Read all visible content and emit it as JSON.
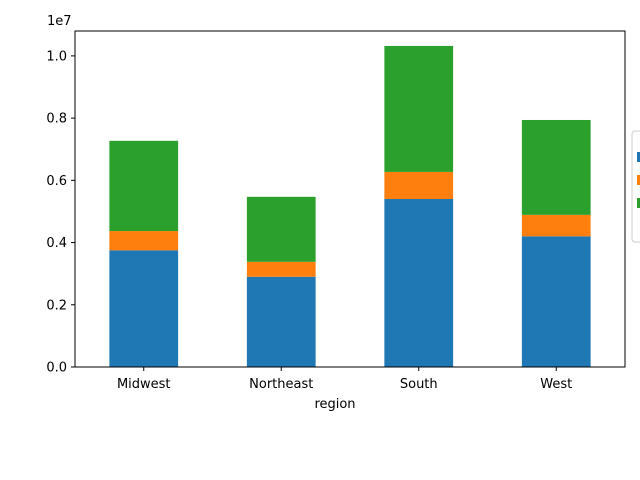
{
  "chart_data": {
    "type": "bar",
    "stacked": true,
    "xlabel": "region",
    "ylabel": "",
    "y_offset_label": "1e7",
    "ylim": [
      0,
      10800000
    ],
    "yticks": [
      0,
      2000000,
      4000000,
      6000000,
      8000000,
      10000000
    ],
    "ytick_labels": [
      "0.0",
      "0.2",
      "0.4",
      "0.6",
      "0.8",
      "1.0"
    ],
    "categories": [
      "Midwest",
      "Northeast",
      "South",
      "West"
    ],
    "series": [
      {
        "color": "#1f77b4",
        "values": [
          3750000,
          2900000,
          5400000,
          4200000
        ]
      },
      {
        "color": "#ff7f0e",
        "values": [
          620000,
          480000,
          870000,
          690000
        ]
      },
      {
        "color": "#2ca02c",
        "values": [
          2900000,
          2090000,
          4050000,
          3050000
        ]
      }
    ],
    "legend": {
      "position": "right",
      "entries": 3
    },
    "grid": false
  }
}
